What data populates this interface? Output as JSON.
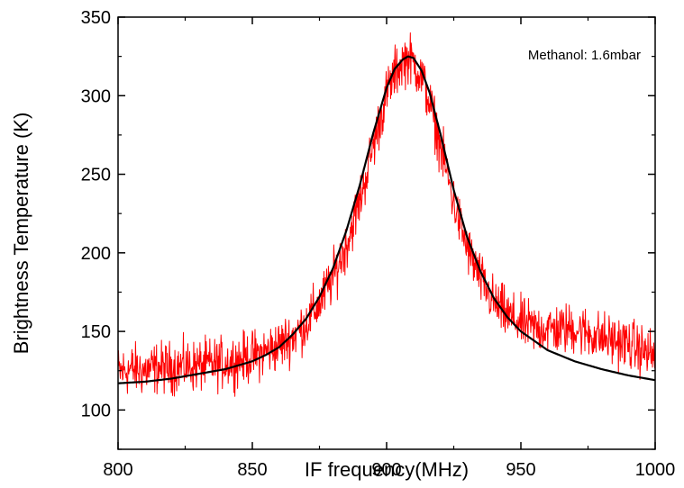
{
  "chart_data": {
    "type": "line",
    "title": "",
    "xlabel": "IF frequency(MHz)",
    "ylabel": "Brightness Temperature (K)",
    "xlim": [
      800,
      1000
    ],
    "ylim": [
      75,
      350
    ],
    "grid": false,
    "legend": "none",
    "x_ticks": [
      800,
      850,
      900,
      950,
      1000
    ],
    "x_tick_labels": [
      "800",
      "850",
      "900",
      "950",
      "1000"
    ],
    "y_ticks": [
      100,
      150,
      200,
      250,
      300,
      350
    ],
    "y_tick_labels": [
      "100",
      "150",
      "200",
      "250",
      "300",
      "350"
    ],
    "annotation": "Methanol: 1.6mbar",
    "series": [
      {
        "color": "#ff0000",
        "style": "noisy",
        "x": [
          800,
          805,
          810,
          815,
          820,
          825,
          830,
          835,
          840,
          845,
          850,
          855,
          860,
          865,
          870,
          875,
          880,
          885,
          890,
          895,
          900,
          903,
          906,
          908,
          910,
          913,
          916,
          920,
          925,
          930,
          935,
          940,
          945,
          950,
          955,
          960,
          965,
          970,
          975,
          980,
          985,
          990,
          995,
          1000
        ],
        "values": [
          124,
          126,
          125,
          127,
          127,
          128,
          128,
          129,
          130,
          132,
          134,
          137,
          141,
          147,
          155,
          168,
          184,
          205,
          233,
          268,
          301,
          314,
          322,
          324,
          321,
          312,
          296,
          268,
          232,
          203,
          183,
          168,
          160,
          155,
          152,
          152,
          151,
          152,
          149,
          146,
          144,
          142,
          138,
          134
        ]
      },
      {
        "color": "#000000",
        "style": "smooth",
        "x": [
          800,
          810,
          820,
          830,
          840,
          850,
          855,
          860,
          865,
          870,
          875,
          880,
          885,
          890,
          895,
          900,
          903,
          906,
          908,
          910,
          913,
          916,
          920,
          925,
          930,
          935,
          940,
          945,
          950,
          960,
          970,
          980,
          990,
          1000
        ],
        "values": [
          117,
          118,
          120,
          123,
          126,
          131,
          135,
          140,
          148,
          158,
          172,
          190,
          214,
          243,
          276,
          305,
          317,
          323,
          325,
          324,
          316,
          302,
          276,
          240,
          210,
          188,
          171,
          159,
          150,
          138,
          131,
          126,
          122,
          119
        ]
      }
    ]
  }
}
